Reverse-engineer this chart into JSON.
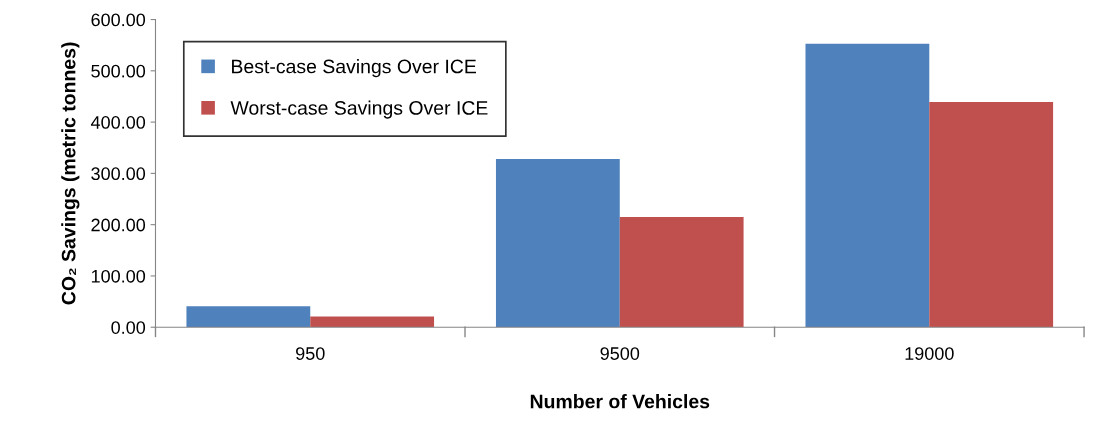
{
  "chart_data": {
    "type": "bar",
    "xlabel": "Number of Vehicles",
    "ylabel": "CO₂ Savings (metric tonnes)",
    "categories": [
      "950",
      "9500",
      "19000"
    ],
    "series": [
      {
        "name": "Best-case Savings Over ICE",
        "color": "#4f81bd",
        "values": [
          41,
          328,
          553
        ]
      },
      {
        "name": "Worst-case Savings Over ICE",
        "color": "#c0504d",
        "values": [
          21,
          215,
          439
        ]
      }
    ],
    "ylim": [
      0,
      600
    ],
    "yticks": [
      {
        "value": 0,
        "label": "0.00"
      },
      {
        "value": 100,
        "label": "100.00"
      },
      {
        "value": 200,
        "label": "200.00"
      },
      {
        "value": 300,
        "label": "300.00"
      },
      {
        "value": 400,
        "label": "400.00"
      },
      {
        "value": 500,
        "label": "500.00"
      },
      {
        "value": 600,
        "label": "600.00"
      }
    ],
    "grid": false,
    "legend": "top left"
  }
}
